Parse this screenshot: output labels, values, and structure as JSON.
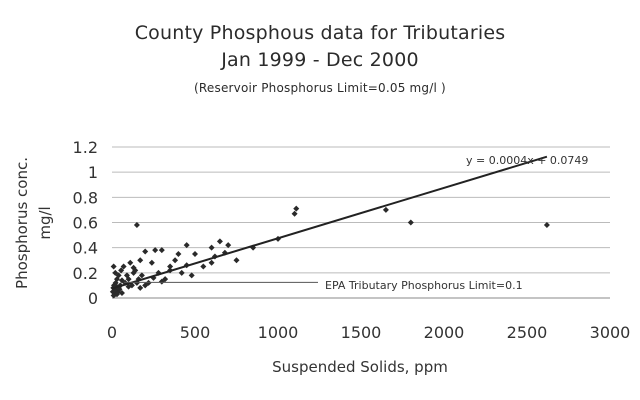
{
  "chart_data": {
    "type": "scatter",
    "title": "County Phosphous data for Tributaries",
    "subtitle": "Jan 1999 - Dec 2000",
    "note": "(Reservoir Phosphorus Limit=0.05 mg/l )",
    "xlabel": "Suspended Solids, ppm",
    "ylabel_line1": "Phosphorus conc.",
    "ylabel_line2": "mg/l",
    "xlim": [
      0,
      3000
    ],
    "ylim": [
      0,
      1.2
    ],
    "xticks": [
      0,
      500,
      1000,
      1500,
      2000,
      2500,
      3000
    ],
    "yticks": [
      0,
      0.2,
      0.4,
      0.6,
      0.8,
      1,
      1.2
    ],
    "xtick_labels": [
      "0",
      "500",
      "1000",
      "1500",
      "2000",
      "2500",
      "3000"
    ],
    "ytick_labels": [
      "0",
      "0.2",
      "0.4",
      "0.6",
      "0.8",
      "1",
      "1.2"
    ],
    "grid": "horizontal",
    "trendline": {
      "slope": 0.0004,
      "intercept": 0.0749,
      "x_range": [
        0,
        2620
      ],
      "equation_label": "y = 0.0004x + 0.0749"
    },
    "epa_limit": {
      "value": 0.1,
      "label": "EPA Tributary Phosphorus Limit=0.1"
    },
    "series": [
      {
        "x": [
          5,
          8,
          10,
          12,
          15,
          18,
          20,
          22,
          25,
          28,
          30,
          35,
          40,
          45,
          50,
          55,
          60,
          70,
          80,
          90,
          100,
          110,
          120,
          130,
          140,
          150,
          160,
          170,
          180,
          200,
          220,
          240,
          260,
          280,
          300,
          320,
          350,
          380,
          400,
          420,
          450,
          480,
          500,
          550,
          600,
          620,
          650,
          680,
          700,
          750,
          850,
          1000,
          1100,
          1110,
          1650,
          1800,
          2620,
          10,
          20,
          30,
          40,
          60,
          100,
          130,
          150,
          170,
          200,
          250,
          300,
          350,
          450,
          600
        ],
        "y": [
          0.05,
          0.08,
          0.25,
          0.1,
          0.06,
          0.03,
          0.2,
          0.12,
          0.06,
          0.09,
          0.15,
          0.05,
          0.18,
          0.07,
          0.1,
          0.22,
          0.04,
          0.25,
          0.12,
          0.18,
          0.15,
          0.28,
          0.1,
          0.2,
          0.22,
          0.58,
          0.15,
          0.3,
          0.18,
          0.37,
          0.12,
          0.28,
          0.38,
          0.2,
          0.38,
          0.15,
          0.25,
          0.3,
          0.35,
          0.2,
          0.42,
          0.18,
          0.35,
          0.25,
          0.4,
          0.33,
          0.45,
          0.36,
          0.42,
          0.3,
          0.4,
          0.47,
          0.67,
          0.71,
          0.7,
          0.6,
          0.58,
          0.02,
          0.05,
          0.03,
          0.08,
          0.14,
          0.09,
          0.24,
          0.12,
          0.08,
          0.1,
          0.16,
          0.13,
          0.22,
          0.26,
          0.28
        ]
      }
    ]
  }
}
